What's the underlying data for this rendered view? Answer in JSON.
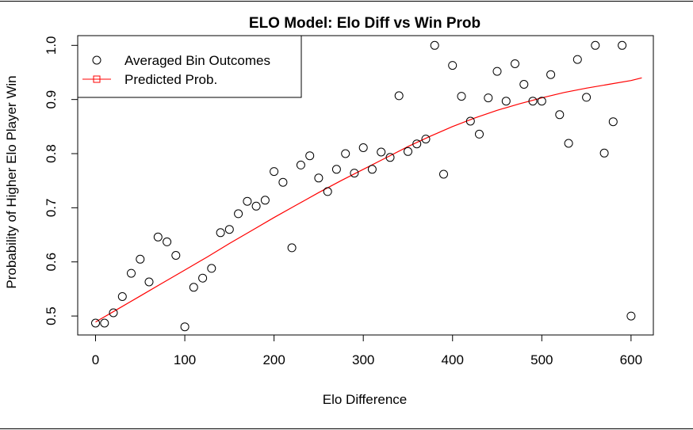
{
  "chart_data": {
    "type": "scatter",
    "title": "ELO Model: Elo Diff vs Win Prob",
    "xlabel": "Elo Difference",
    "ylabel": "Probability of Higher Elo Player Win",
    "xlim": [
      -20,
      625
    ],
    "ylim": [
      0.465,
      1.018
    ],
    "x_ticks": [
      0,
      100,
      200,
      300,
      400,
      500,
      600
    ],
    "x_tick_labels": [
      "0",
      "100",
      "200",
      "300",
      "400",
      "500",
      "600"
    ],
    "y_ticks": [
      0.5,
      0.6,
      0.7,
      0.8,
      0.9,
      1.0
    ],
    "y_tick_labels": [
      "0.5",
      "0.6",
      "0.7",
      "0.8",
      "0.9",
      "1.0"
    ],
    "grid": false,
    "legend_position": "top-left",
    "series": [
      {
        "name": "Averaged Bin Outcomes",
        "type": "scatter",
        "marker": "open-circle",
        "color": "#000000",
        "x": [
          0,
          10,
          20,
          30,
          40,
          50,
          60,
          70,
          80,
          90,
          100,
          110,
          120,
          130,
          140,
          150,
          160,
          170,
          180,
          190,
          200,
          210,
          220,
          230,
          240,
          250,
          260,
          270,
          280,
          290,
          300,
          310,
          320,
          330,
          340,
          350,
          360,
          370,
          380,
          390,
          400,
          410,
          420,
          430,
          440,
          450,
          460,
          470,
          480,
          490,
          500,
          510,
          520,
          530,
          540,
          550,
          560,
          570,
          580,
          590,
          600
        ],
        "y": [
          0.487,
          0.487,
          0.506,
          0.536,
          0.579,
          0.605,
          0.563,
          0.646,
          0.637,
          0.612,
          0.48,
          0.553,
          0.57,
          0.588,
          0.654,
          0.66,
          0.689,
          0.712,
          0.703,
          0.714,
          0.767,
          0.747,
          0.626,
          0.779,
          0.796,
          0.755,
          0.73,
          0.771,
          0.8,
          0.764,
          0.811,
          0.771,
          0.803,
          0.793,
          0.907,
          0.804,
          0.818,
          0.827,
          1.0,
          0.762,
          0.963,
          0.906,
          0.86,
          0.836,
          0.903,
          0.952,
          0.897,
          0.966,
          0.928,
          0.897,
          0.897,
          0.946,
          0.872,
          0.819,
          0.974,
          0.904,
          1.0,
          0.801,
          0.859,
          1.0,
          0.5
        ]
      },
      {
        "name": "Predicted Prob.",
        "type": "line",
        "color": "#ff0000",
        "x": [
          0,
          25,
          50,
          75,
          100,
          125,
          150,
          175,
          200,
          225,
          250,
          275,
          300,
          325,
          350,
          375,
          400,
          425,
          450,
          475,
          500,
          525,
          550,
          575,
          600,
          612
        ],
        "y": [
          0.489,
          0.513,
          0.537,
          0.561,
          0.585,
          0.609,
          0.634,
          0.658,
          0.682,
          0.705,
          0.728,
          0.75,
          0.771,
          0.792,
          0.813,
          0.832,
          0.85,
          0.866,
          0.88,
          0.892,
          0.903,
          0.913,
          0.921,
          0.928,
          0.935,
          0.94
        ]
      }
    ]
  }
}
